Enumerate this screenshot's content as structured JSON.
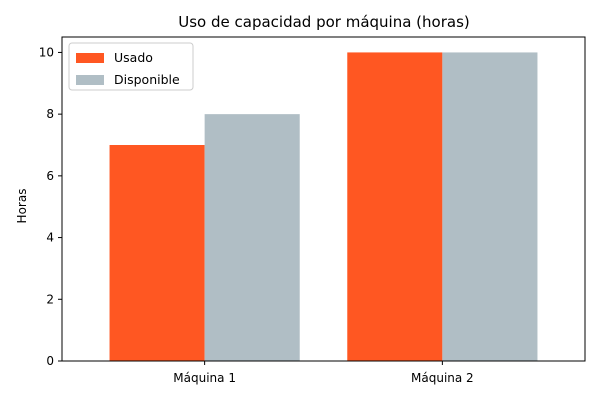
{
  "chart_data": {
    "type": "bar",
    "title": "Uso de capacidad por máquina (horas)",
    "xlabel": "",
    "ylabel": "Horas",
    "categories": [
      "Máquina 1",
      "Máquina 2"
    ],
    "series": [
      {
        "name": "Usado",
        "values": [
          7,
          10
        ],
        "color": "#ff5722"
      },
      {
        "name": "Disponible",
        "values": [
          8,
          10
        ],
        "color": "#b0bec5"
      }
    ],
    "ylim": [
      0,
      10.5
    ],
    "yticks": [
      0,
      2,
      4,
      6,
      8,
      10
    ],
    "grid": false,
    "legend": "top-left"
  }
}
